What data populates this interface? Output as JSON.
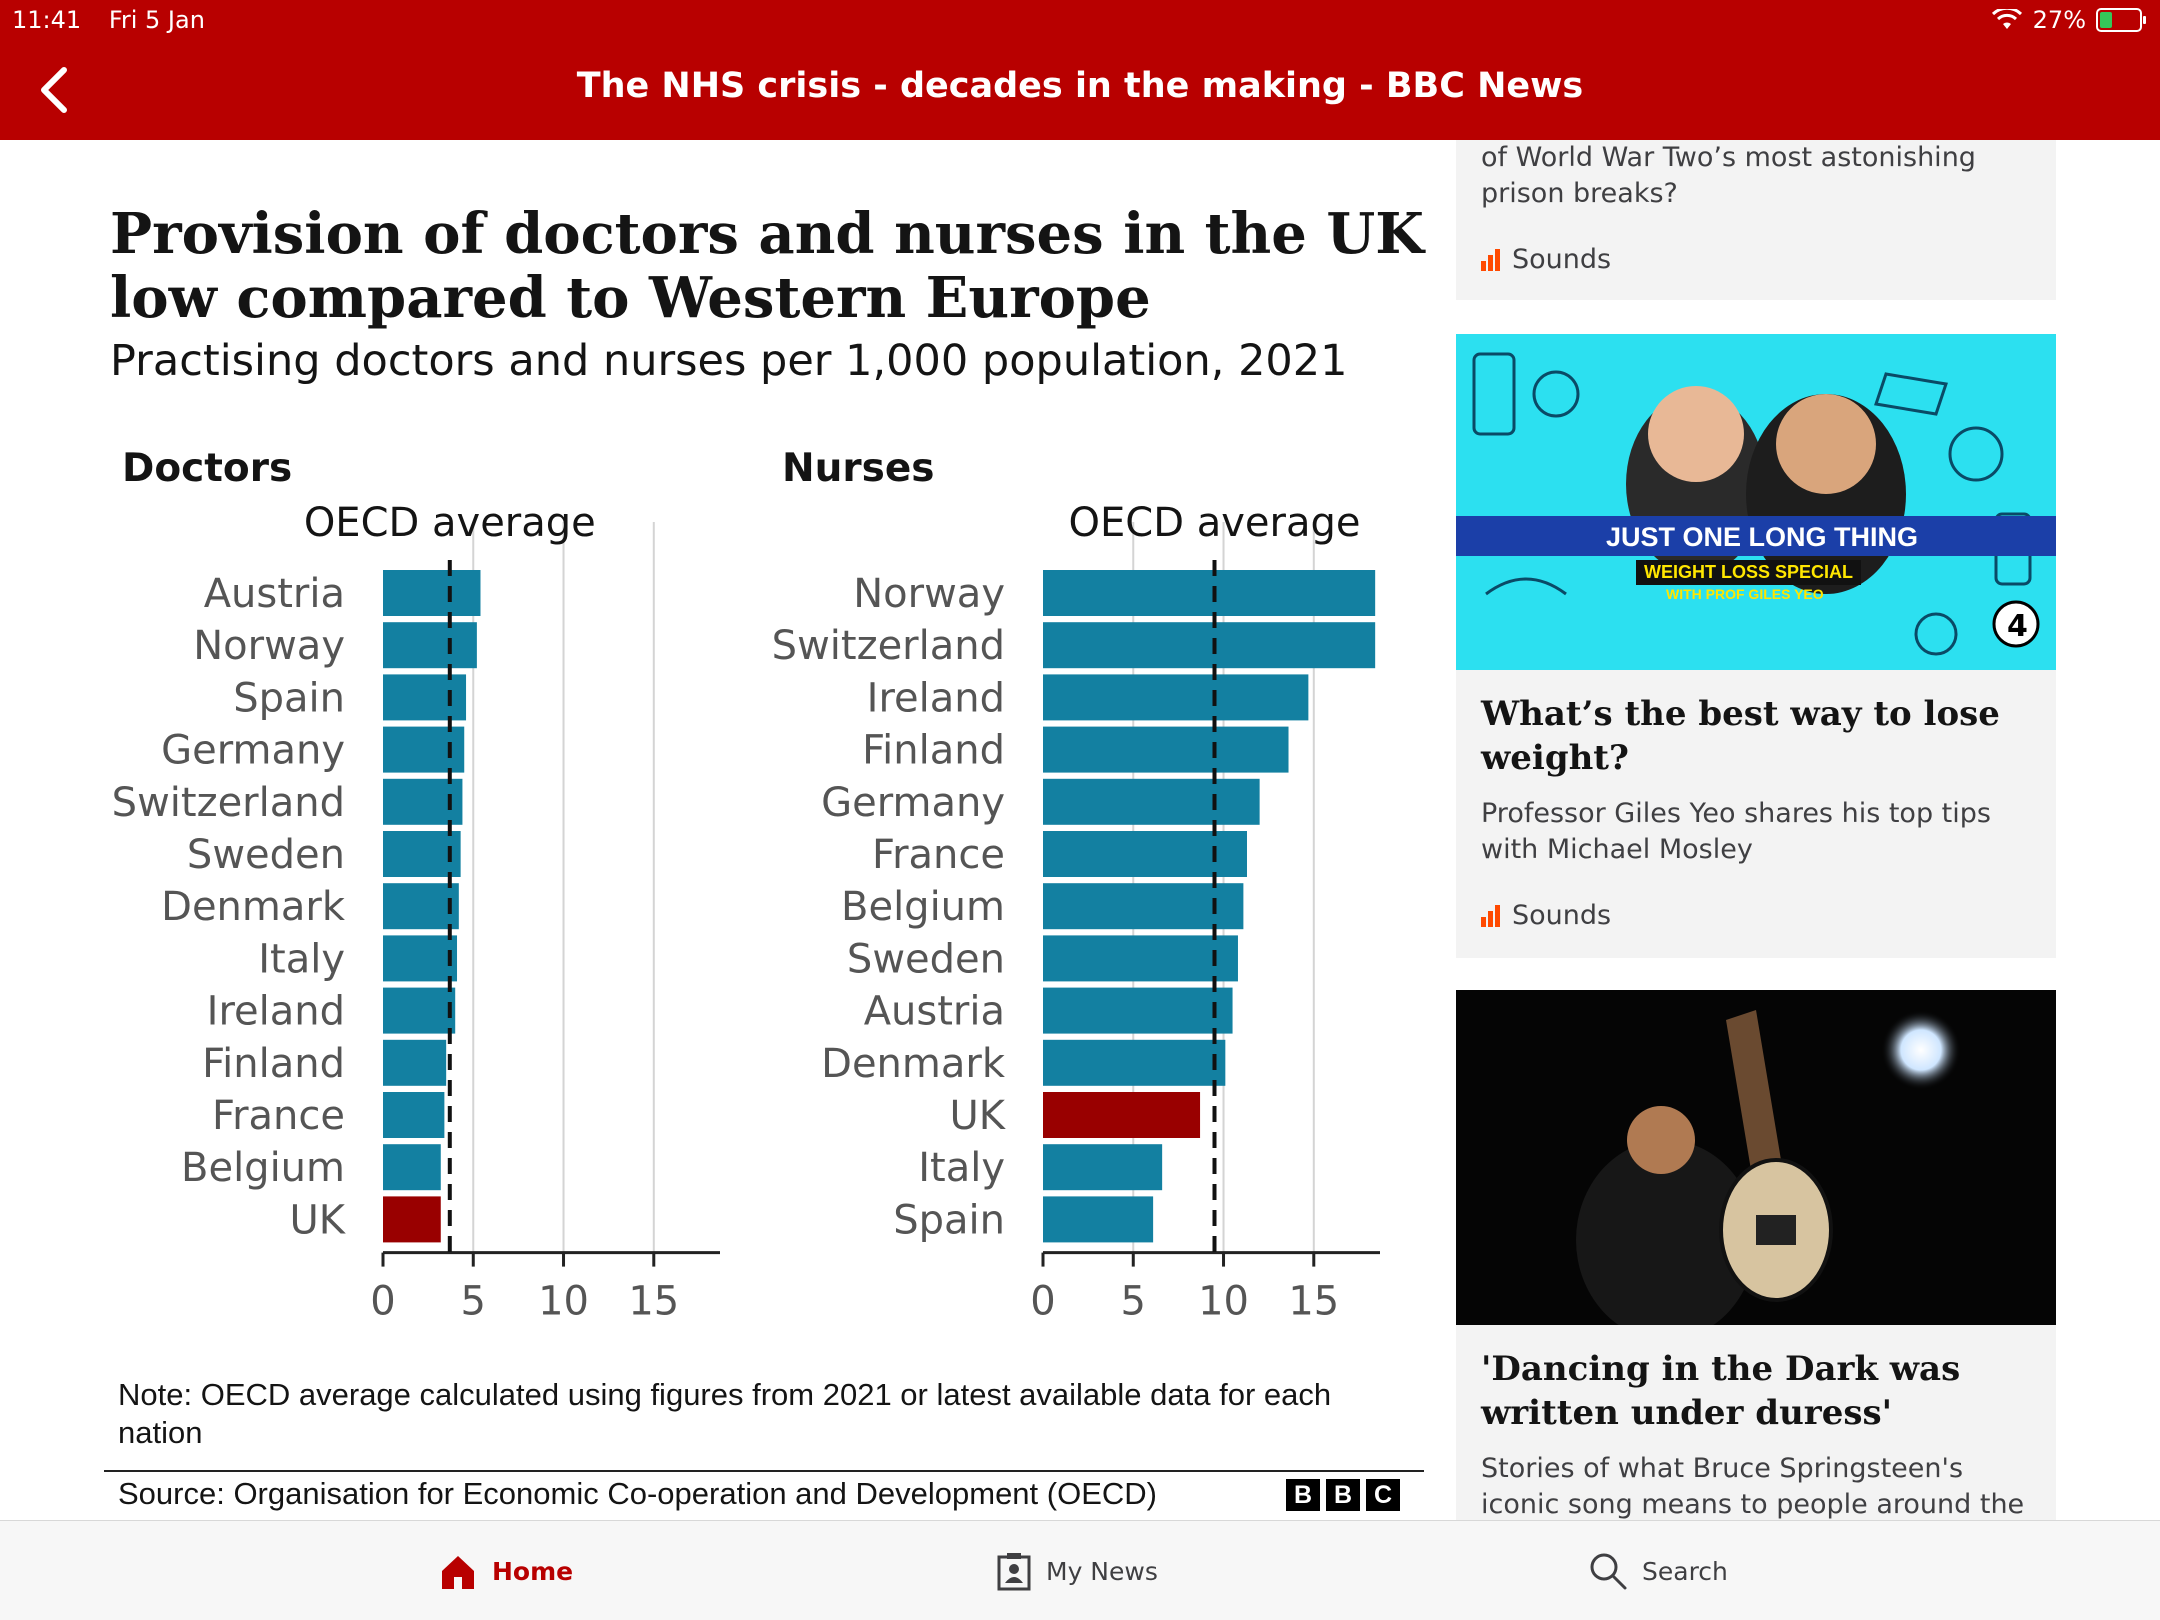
{
  "status_bar": {
    "time": "11:41",
    "date": "Fri 5 Jan",
    "battery": "27%"
  },
  "header": {
    "title": "The NHS crisis - decades in the making - BBC News"
  },
  "chart": {
    "title": "Provision of doctors and nurses in the UK low compared to Western Europe",
    "subtitle": "Practising doctors and nurses per 1,000 population, 2021",
    "note": "Note: OECD average calculated using figures from 2021 or latest available data for each nation",
    "source": "Source: Organisation for Economic Co-operation and Development (OECD)",
    "logo_letters": [
      "B",
      "B",
      "C"
    ]
  },
  "chart_data": [
    {
      "type": "bar",
      "orientation": "horizontal",
      "title": "Doctors",
      "reference_line": {
        "label": "OECD average",
        "value": 3.7
      },
      "categories": [
        "Austria",
        "Norway",
        "Spain",
        "Germany",
        "Switzerland",
        "Sweden",
        "Denmark",
        "Italy",
        "Ireland",
        "Finland",
        "France",
        "Belgium",
        "UK"
      ],
      "values": [
        5.4,
        5.2,
        4.6,
        4.5,
        4.4,
        4.3,
        4.2,
        4.1,
        4.0,
        3.5,
        3.4,
        3.2,
        3.2
      ],
      "highlight": "UK",
      "colors": {
        "bar": "#1380a1",
        "highlight": "#990000"
      },
      "xticks": [
        0,
        5,
        10,
        15
      ],
      "xlim": [
        0,
        19
      ],
      "grid": true
    },
    {
      "type": "bar",
      "orientation": "horizontal",
      "title": "Nurses",
      "reference_line": {
        "label": "OECD average",
        "value": 9.5
      },
      "categories": [
        "Norway",
        "Switzerland",
        "Ireland",
        "Finland",
        "Germany",
        "France",
        "Belgium",
        "Sweden",
        "Austria",
        "Denmark",
        "UK",
        "Italy",
        "Spain"
      ],
      "values": [
        18.4,
        18.4,
        14.7,
        13.6,
        12.0,
        11.3,
        11.1,
        10.8,
        10.5,
        10.1,
        8.7,
        6.6,
        6.1
      ],
      "highlight": "UK",
      "colors": {
        "bar": "#1380a1",
        "highlight": "#990000"
      },
      "xticks": [
        0,
        5,
        10,
        15
      ],
      "xlim": [
        0,
        19
      ],
      "grid": true
    }
  ],
  "sidebar": {
    "card1": {
      "lead": "of World War Two’s most astonishing prison breaks?",
      "source": "Sounds"
    },
    "card2": {
      "promo_title": "JUST ONE LONG THING",
      "promo_sub": "WEIGHT LOSS SPECIAL",
      "promo_sub2": "WITH PROF GILES YEO",
      "title": "What’s the best way to lose weight?",
      "description": "Professor Giles Yeo shares his top tips with Michael Mosley",
      "source": "Sounds"
    },
    "card3": {
      "title": "'Dancing in the Dark was written under duress'",
      "description": "Stories of what Bruce Springsteen's iconic song means to people around the world"
    }
  },
  "bottom_nav": {
    "home": "Home",
    "my_news": "My News",
    "search": "Search"
  }
}
